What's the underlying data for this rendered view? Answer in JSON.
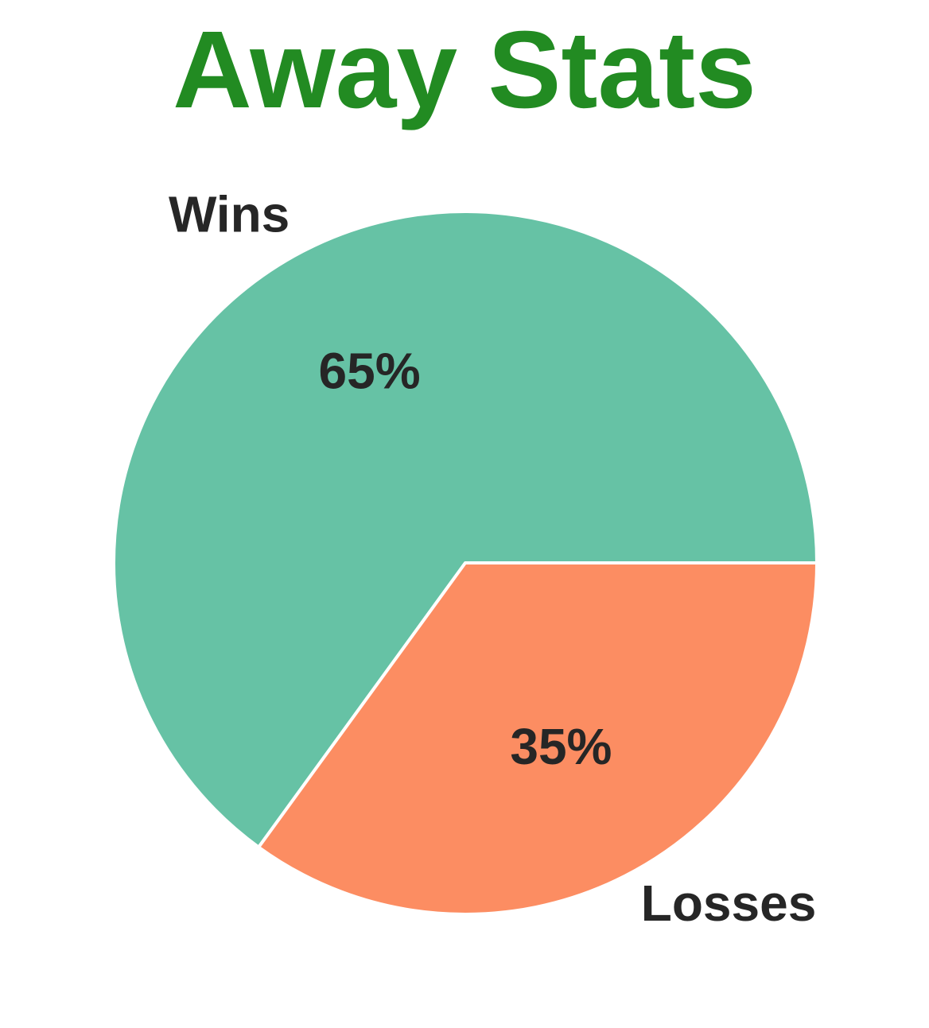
{
  "chart_data": {
    "type": "pie",
    "title": "Away Stats",
    "title_color": "#228B22",
    "label_color": "#262626",
    "slices": [
      {
        "label": "Wins",
        "value": 65,
        "pct_label": "65%",
        "color": "#66C2A5"
      },
      {
        "label": "Losses",
        "value": 35,
        "pct_label": "35%",
        "color": "#FC8D62"
      }
    ],
    "edge_color": "#ffffff",
    "legend": "none"
  }
}
